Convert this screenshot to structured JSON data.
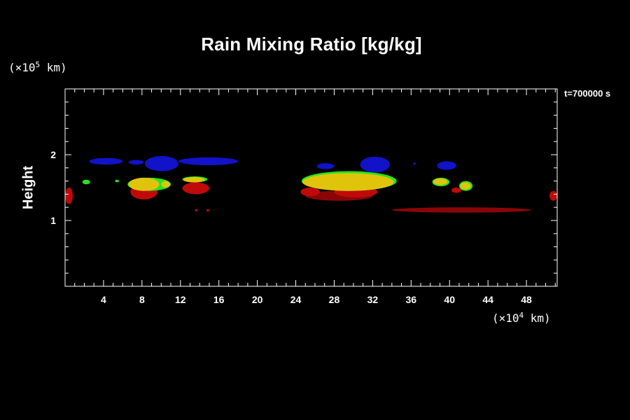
{
  "chart_data": {
    "type": "heatmap",
    "title": "Rain Mixing Ratio [kg/kg]",
    "ylabel": "Height",
    "xlabel": "",
    "x_unit": {
      "prefix": "(×10",
      "exp": "4",
      "suffix": " km)"
    },
    "y_unit": {
      "prefix": "(×10",
      "exp": "5",
      "suffix": " km)"
    },
    "time_label": "t=700000 s",
    "xlim": [
      0,
      51.2
    ],
    "ylim": [
      0,
      3
    ],
    "x_ticks": [
      4,
      8,
      12,
      16,
      20,
      24,
      28,
      32,
      36,
      40,
      44,
      48
    ],
    "x_minor_step": 1,
    "y_ticks": [
      1,
      2
    ],
    "y_minor_step": 0.2,
    "background": "#000000",
    "colors": {
      "blue": "#1212c8",
      "green": "#22e522",
      "yellow": "#e0c40c",
      "red": "#c00a0a",
      "darkred": "#8a0606"
    },
    "layers": [
      {
        "name": "darkred",
        "patches": [
          {
            "x": [
              34.0,
              48.5
            ],
            "y": [
              1.12,
              1.2
            ]
          },
          {
            "x": [
              25.0,
              32.0
            ],
            "y": [
              1.3,
              1.45
            ]
          }
        ]
      },
      {
        "name": "red",
        "patches": [
          {
            "x": [
              0.0,
              0.8
            ],
            "y": [
              1.25,
              1.5
            ]
          },
          {
            "x": [
              50.4,
              51.2
            ],
            "y": [
              1.3,
              1.45
            ]
          },
          {
            "x": [
              6.8,
              9.6
            ],
            "y": [
              1.32,
              1.55
            ]
          },
          {
            "x": [
              12.2,
              15.0
            ],
            "y": [
              1.4,
              1.58
            ]
          },
          {
            "x": [
              24.5,
              26.5
            ],
            "y": [
              1.37,
              1.5
            ]
          },
          {
            "x": [
              28.0,
              32.5
            ],
            "y": [
              1.35,
              1.52
            ]
          },
          {
            "x": [
              40.2,
              41.2
            ],
            "y": [
              1.42,
              1.5
            ]
          },
          {
            "x": [
              13.5,
              13.8
            ],
            "y": [
              1.14,
              1.17
            ]
          },
          {
            "x": [
              14.7,
              15.0
            ],
            "y": [
              1.14,
              1.17
            ]
          }
        ]
      },
      {
        "name": "green",
        "patches": [
          {
            "x": [
              1.8,
              2.6
            ],
            "y": [
              1.55,
              1.62
            ]
          },
          {
            "x": [
              5.2,
              5.6
            ],
            "y": [
              1.58,
              1.62
            ]
          },
          {
            "x": [
              6.5,
              11.0
            ],
            "y": [
              1.45,
              1.65
            ]
          },
          {
            "x": [
              12.2,
              14.8
            ],
            "y": [
              1.58,
              1.67
            ]
          },
          {
            "x": [
              24.6,
              34.5
            ],
            "y": [
              1.45,
              1.75
            ]
          },
          {
            "x": [
              38.2,
              40.0
            ],
            "y": [
              1.52,
              1.65
            ]
          },
          {
            "x": [
              41.0,
              42.4
            ],
            "y": [
              1.45,
              1.6
            ]
          }
        ]
      },
      {
        "name": "yellow",
        "patches": [
          {
            "x": [
              6.6,
              9.8
            ],
            "y": [
              1.45,
              1.65
            ]
          },
          {
            "x": [
              10.0,
              10.9
            ],
            "y": [
              1.5,
              1.6
            ]
          },
          {
            "x": [
              12.3,
              14.5
            ],
            "y": [
              1.58,
              1.66
            ]
          },
          {
            "x": [
              24.7,
              34.2
            ],
            "y": [
              1.45,
              1.72
            ]
          },
          {
            "x": [
              38.3,
              39.8
            ],
            "y": [
              1.54,
              1.64
            ]
          },
          {
            "x": [
              41.1,
              42.2
            ],
            "y": [
              1.47,
              1.58
            ]
          }
        ]
      },
      {
        "name": "blue",
        "patches": [
          {
            "x": [
              2.5,
              6.0
            ],
            "y": [
              1.85,
              1.95
            ]
          },
          {
            "x": [
              6.6,
              8.2
            ],
            "y": [
              1.85,
              1.92
            ]
          },
          {
            "x": [
              8.3,
              11.8
            ],
            "y": [
              1.75,
              1.98
            ]
          },
          {
            "x": [
              11.8,
              18.0
            ],
            "y": [
              1.84,
              1.96
            ]
          },
          {
            "x": [
              26.2,
              28.0
            ],
            "y": [
              1.78,
              1.87
            ]
          },
          {
            "x": [
              30.7,
              33.8
            ],
            "y": [
              1.73,
              1.97
            ]
          },
          {
            "x": [
              36.2,
              36.5
            ],
            "y": [
              1.85,
              1.88
            ]
          },
          {
            "x": [
              38.7,
              40.7
            ],
            "y": [
              1.77,
              1.9
            ]
          }
        ]
      }
    ]
  }
}
